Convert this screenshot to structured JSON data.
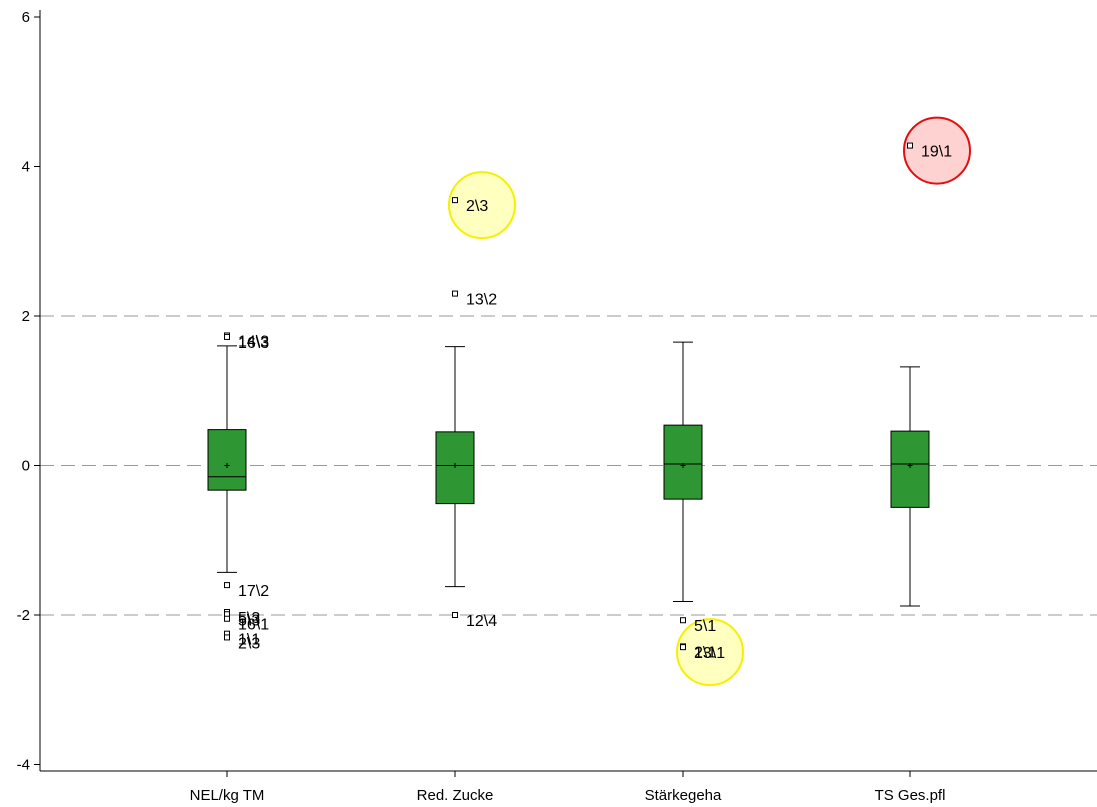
{
  "chart_data": {
    "type": "boxplot",
    "title": "",
    "xlabel": "",
    "ylabel": "",
    "ylim": [
      -4.1,
      6.1
    ],
    "yticks": [
      -4,
      -2,
      0,
      2,
      4,
      6
    ],
    "ytick_labels": [
      "-4",
      "-2",
      "0",
      "2",
      "4",
      "6"
    ],
    "reference_lines": [
      -2,
      0,
      2
    ],
    "grid": false,
    "colors": {
      "box_fill": "#2e9632",
      "reference_line": "#9a9a9a",
      "highlight_yellow_fill": "#ffffc0",
      "highlight_yellow_stroke": "#f5f000",
      "highlight_red_fill": "#ffd2d2",
      "highlight_red_stroke": "#e01010"
    },
    "categories": [
      "NEL/kg TM",
      "Red. Zucke",
      "Stärkegeha",
      "TS Ges.pfl"
    ],
    "boxes": [
      {
        "category": "NEL/kg TM",
        "whisker_low": -1.43,
        "q1": -0.33,
        "median": -0.15,
        "q3": 0.48,
        "whisker_high": 1.6,
        "mean": 0.0,
        "outliers": [
          {
            "value": 1.74,
            "label": "14\\3"
          },
          {
            "value": 1.72,
            "label": "16\\3"
          },
          {
            "value": -1.6,
            "label": "17\\2"
          },
          {
            "value": -1.96,
            "label": "5\\3"
          },
          {
            "value": -1.99,
            "label": "5\\3"
          },
          {
            "value": -2.05,
            "label": "16\\1"
          },
          {
            "value": -2.25,
            "label": "1\\1"
          },
          {
            "value": -2.3,
            "label": "2\\3"
          }
        ]
      },
      {
        "category": "Red. Zucke",
        "whisker_low": -1.62,
        "q1": -0.51,
        "median": 0.0,
        "q3": 0.45,
        "whisker_high": 1.59,
        "mean": 0.0,
        "outliers": [
          {
            "value": 3.55,
            "label": "2\\3",
            "highlight": "yellow"
          },
          {
            "value": 2.3,
            "label": "13\\2"
          },
          {
            "value": -2.0,
            "label": "12\\4"
          }
        ]
      },
      {
        "category": "Stärkegeha",
        "whisker_low": -1.82,
        "q1": -0.45,
        "median": 0.02,
        "q3": 0.54,
        "whisker_high": 1.65,
        "mean": 0.0,
        "outliers": [
          {
            "value": -2.07,
            "label": "5\\1"
          },
          {
            "value": -2.42,
            "label": "2\\1"
          },
          {
            "value": -2.43,
            "label": "13\\1",
            "highlight": "yellow"
          }
        ]
      },
      {
        "category": "TS Ges.pfl",
        "whisker_low": -1.88,
        "q1": -0.56,
        "median": 0.02,
        "q3": 0.46,
        "whisker_high": 1.32,
        "mean": 0.0,
        "outliers": [
          {
            "value": 4.28,
            "label": "19\\1",
            "highlight": "red"
          }
        ]
      }
    ]
  }
}
